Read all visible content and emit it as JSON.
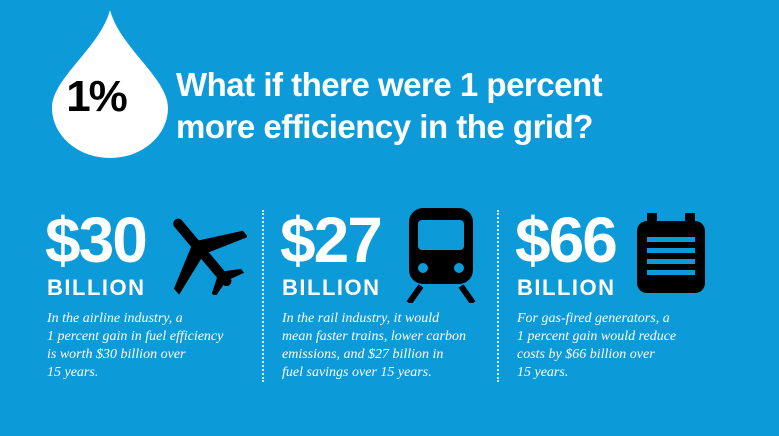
{
  "header": {
    "badge": "1%",
    "title_lines": [
      "What if there were 1 percent",
      "more efficiency in the grid?"
    ]
  },
  "panels": [
    {
      "amount": "$30",
      "unit": "BILLION",
      "description_lines": [
        "In the airline industry, a",
        "1 percent gain in fuel efficiency",
        "is worth $30 billion over",
        "15 years."
      ]
    },
    {
      "amount": "$27",
      "unit": "BILLION",
      "description_lines": [
        "In the rail industry, it would",
        "mean faster trains, lower carbon",
        "emissions, and $27 billion in",
        "fuel savings over 15 years."
      ]
    },
    {
      "amount": "$66",
      "unit": "BILLION",
      "description_lines": [
        "For gas-fired generators, a",
        "1 percent gain would reduce",
        "costs by $66 billion over",
        "15 years."
      ]
    }
  ]
}
